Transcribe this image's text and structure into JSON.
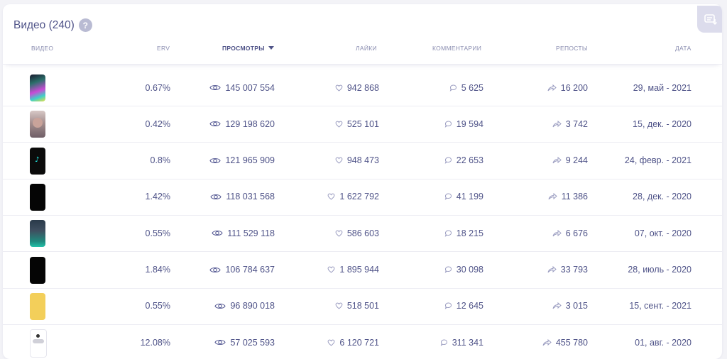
{
  "section": {
    "title": "Видео (240)",
    "help": "?"
  },
  "columns": {
    "video": "ВИДЕО",
    "erv": "ERV",
    "views": "ПРОСМОТРЫ",
    "likes": "ЛАЙКИ",
    "comments": "КОММЕНТАРИИ",
    "reposts": "РЕПОСТЫ",
    "date": "ДАТА"
  },
  "rows": [
    {
      "thumb": "colorful",
      "erv": "0.67%",
      "views": "145 007 554",
      "likes": "942 868",
      "comments": "5 625",
      "reposts": "16 200",
      "date": "29, май - 2021"
    },
    {
      "thumb": "portrait",
      "erv": "0.42%",
      "views": "129 198 620",
      "likes": "525 101",
      "comments": "19 594",
      "reposts": "3 742",
      "date": "15, дек. - 2020"
    },
    {
      "thumb": "tiktok",
      "erv": "0.8%",
      "views": "121 965 909",
      "likes": "948 473",
      "comments": "22 653",
      "reposts": "9 244",
      "date": "24, февр. - 2021"
    },
    {
      "thumb": "black",
      "erv": "1.42%",
      "views": "118 031 568",
      "likes": "1 622 792",
      "comments": "41 199",
      "reposts": "11 386",
      "date": "28, дек. - 2020"
    },
    {
      "thumb": "dark-scene",
      "erv": "0.55%",
      "views": "111 529 118",
      "likes": "586 603",
      "comments": "18 215",
      "reposts": "6 676",
      "date": "07, окт. - 2020"
    },
    {
      "thumb": "black",
      "erv": "1.84%",
      "views": "106 784 637",
      "likes": "1 895 944",
      "comments": "30 098",
      "reposts": "33 793",
      "date": "28, июль - 2020"
    },
    {
      "thumb": "yellow",
      "erv": "0.55%",
      "views": "96 890 018",
      "likes": "518 501",
      "comments": "12 645",
      "reposts": "3 015",
      "date": "15, сент. - 2021"
    },
    {
      "thumb": "white-logo",
      "erv": "12.08%",
      "views": "57 025 593",
      "likes": "6 120 721",
      "comments": "311 341",
      "reposts": "455 780",
      "date": "01, авг. - 2020"
    }
  ],
  "colors": {
    "accent": "#4f5388",
    "muted": "#8a8db0",
    "yellow_thumb": "#f3cf5a"
  }
}
